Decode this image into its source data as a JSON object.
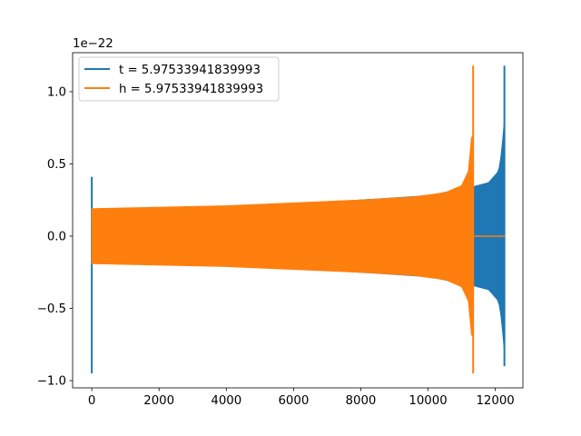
{
  "chart_data": {
    "type": "line",
    "title": "",
    "xlabel": "",
    "ylabel": "",
    "y_offset_label": "1e−22",
    "xlim": [
      -570,
      12820
    ],
    "ylim": [
      -1.05,
      1.27
    ],
    "xticks": [
      {
        "value": 0,
        "label": "0"
      },
      {
        "value": 2000,
        "label": "2000"
      },
      {
        "value": 4000,
        "label": "4000"
      },
      {
        "value": 6000,
        "label": "6000"
      },
      {
        "value": 8000,
        "label": "8000"
      },
      {
        "value": 10000,
        "label": "10000"
      },
      {
        "value": 12000,
        "label": "12000"
      }
    ],
    "yticks": [
      {
        "value": -1.0,
        "label": "−1.0"
      },
      {
        "value": -0.5,
        "label": "−0.5"
      },
      {
        "value": 0.0,
        "label": "0.0"
      },
      {
        "value": 0.5,
        "label": "0.5"
      },
      {
        "value": 1.0,
        "label": "1.0"
      }
    ],
    "grid": false,
    "legend_position": "top-left",
    "series": [
      {
        "name": "t = 5.97533941839993",
        "color": "#1f77b4",
        "style": "dense oscillation envelope",
        "x_range": [
          0,
          12290
        ],
        "spike_at_start": {
          "x": 0,
          "max": 0.41,
          "min": -0.95
        },
        "envelope": [
          {
            "x": 0,
            "amp": 0.18
          },
          {
            "x": 2000,
            "amp": 0.19
          },
          {
            "x": 4000,
            "amp": 0.205
          },
          {
            "x": 6000,
            "amp": 0.22
          },
          {
            "x": 8000,
            "amp": 0.25
          },
          {
            "x": 10000,
            "amp": 0.28
          },
          {
            "x": 11300,
            "amp": 0.34
          },
          {
            "x": 11800,
            "amp": 0.37
          },
          {
            "x": 12100,
            "amp": 0.45
          },
          {
            "x": 12200,
            "amp": 0.6
          },
          {
            "x": 12260,
            "amp": 0.8
          }
        ],
        "final_spike": {
          "x": 12270,
          "max": 1.18,
          "min": -0.9
        }
      },
      {
        "name": "h = 5.97533941839993",
        "color": "#ff7f0e",
        "style": "dense oscillation envelope",
        "x_range": [
          0,
          11370
        ],
        "envelope": [
          {
            "x": 0,
            "amp": 0.19
          },
          {
            "x": 2000,
            "amp": 0.2
          },
          {
            "x": 4000,
            "amp": 0.21
          },
          {
            "x": 6000,
            "amp": 0.23
          },
          {
            "x": 8000,
            "amp": 0.25
          },
          {
            "x": 9500,
            "amp": 0.27
          },
          {
            "x": 10500,
            "amp": 0.3
          },
          {
            "x": 11000,
            "amp": 0.35
          },
          {
            "x": 11200,
            "amp": 0.45
          },
          {
            "x": 11300,
            "amp": 0.7
          }
        ],
        "final_spike": {
          "x": 11340,
          "max": 1.18,
          "min": -0.95
        },
        "flat_tail": {
          "x_start": 11370,
          "x_end": 12280,
          "y": 0.0
        }
      }
    ]
  }
}
